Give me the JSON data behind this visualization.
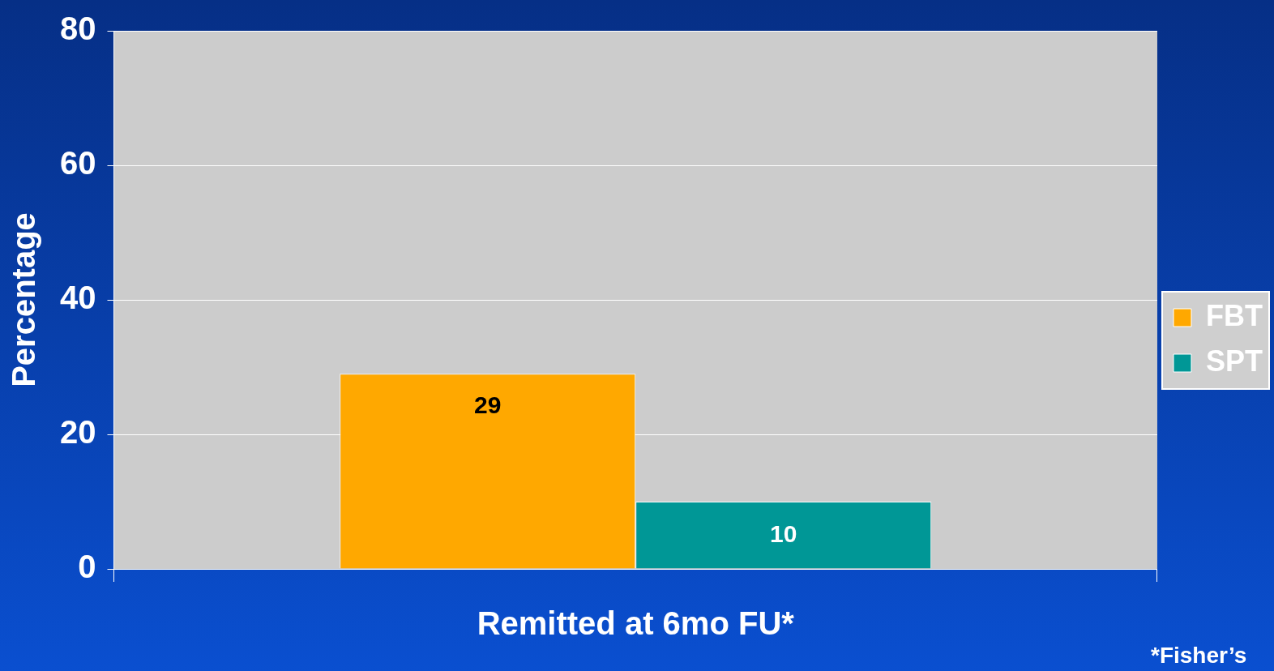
{
  "chart_data": {
    "type": "bar",
    "ylabel": "Percentage",
    "categories": [
      "Remitted at 6mo FU*"
    ],
    "series": [
      {
        "name": "FBT",
        "color": "#ffa800",
        "values": [
          29
        ]
      },
      {
        "name": "SPT",
        "color": "#009796",
        "values": [
          10
        ]
      }
    ],
    "ylim": [
      0,
      80
    ],
    "yticks": [
      0,
      20,
      40,
      60,
      80
    ],
    "grid": "y",
    "legend": "right",
    "data_labels": true,
    "annotations": [
      "*Fisher’s"
    ]
  }
}
